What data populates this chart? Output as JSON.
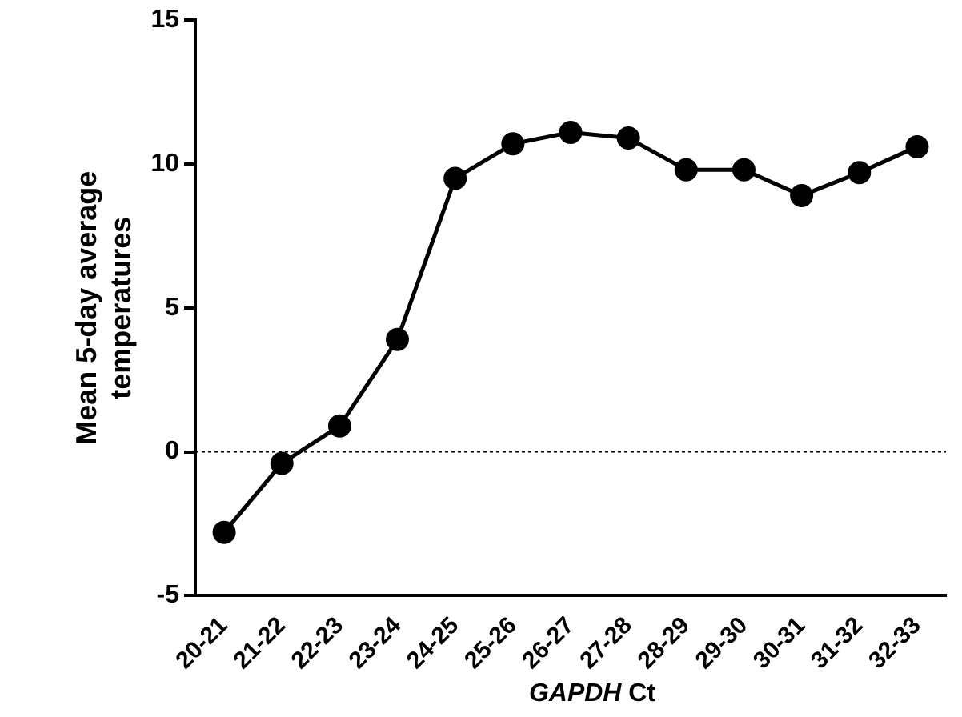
{
  "chart_data": {
    "type": "line",
    "xlabel": "GAPDH Ct",
    "ylabel": "Mean 5-day average temperatures",
    "categories": [
      "20-21",
      "21-22",
      "22-23",
      "23-24",
      "24-25",
      "25-26",
      "26-27",
      "27-28",
      "28-29",
      "29-30",
      "30-31",
      "31-32",
      "32-33"
    ],
    "series": [
      {
        "color": "#000000",
        "values": [
          -2.8,
          -0.4,
          0.9,
          3.9,
          9.5,
          10.7,
          11.1,
          10.9,
          9.8,
          9.8,
          8.9,
          9.7,
          10.6
        ]
      }
    ],
    "ylim": [
      -5,
      15
    ],
    "yticks": [
      -5,
      0,
      5,
      10,
      15
    ],
    "grid": false,
    "legend": false,
    "marker": "circle",
    "line_style": "solid",
    "ref_lines": [
      {
        "axis": "y",
        "value": 0,
        "line_style": "dotted",
        "color": "#000000"
      }
    ]
  }
}
